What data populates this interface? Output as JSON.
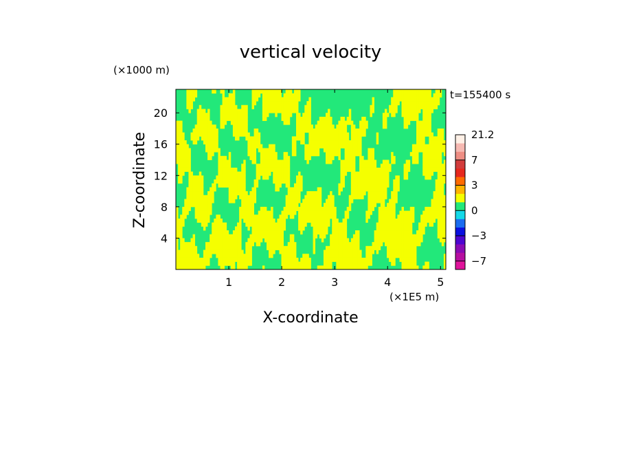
{
  "chart_data": {
    "type": "heatmap",
    "title": "vertical velocity",
    "xlabel": "X-coordinate",
    "ylabel": "Z-coordinate",
    "x_unit": "(×1E5 m)",
    "y_unit": "(×1000 m)",
    "time_label": "t=155400 s",
    "xlim": [
      0,
      5.1
    ],
    "ylim": [
      0,
      23
    ],
    "x_ticks": [
      1,
      2,
      3,
      4,
      5
    ],
    "y_ticks": [
      4,
      8,
      12,
      16,
      20
    ],
    "colorbar": {
      "tick_labels": [
        "21.2",
        "7",
        "3",
        "0",
        "−3",
        "−7"
      ],
      "tick_values": [
        21.2,
        7,
        3,
        0,
        -3,
        -7
      ],
      "levels": [
        {
          "from": -10,
          "to": -7,
          "color": "#e0149b"
        },
        {
          "from": -7,
          "to": -5,
          "color": "#b60fa0"
        },
        {
          "from": -5,
          "to": -4,
          "color": "#8a0bb4"
        },
        {
          "from": -4,
          "to": -3,
          "color": "#4d06d1"
        },
        {
          "from": -3,
          "to": -2,
          "color": "#0a10e0"
        },
        {
          "from": -2,
          "to": -1,
          "color": "#1a6cf0"
        },
        {
          "from": -1,
          "to": 0,
          "color": "#14d9e8"
        },
        {
          "from": 0,
          "to": 1,
          "color": "#22e87a"
        },
        {
          "from": 1,
          "to": 2,
          "color": "#f5ff00"
        },
        {
          "from": 2,
          "to": 3,
          "color": "#ffb400"
        },
        {
          "from": 3,
          "to": 4,
          "color": "#ff6a00"
        },
        {
          "from": 4,
          "to": 5,
          "color": "#e6281e"
        },
        {
          "from": 5,
          "to": 7,
          "color": "#d23c3c"
        },
        {
          "from": 7,
          "to": 10,
          "color": "#ee8e84"
        },
        {
          "from": 10,
          "to": 14,
          "color": "#f6b9b2"
        },
        {
          "from": 14,
          "to": 21.2,
          "color": "#fff0e6"
        }
      ]
    },
    "field": {
      "colors": [
        "#22e87a",
        "#f5ff00"
      ],
      "level_values": [
        0,
        1
      ],
      "rows": 46,
      "cols": 128
    }
  }
}
